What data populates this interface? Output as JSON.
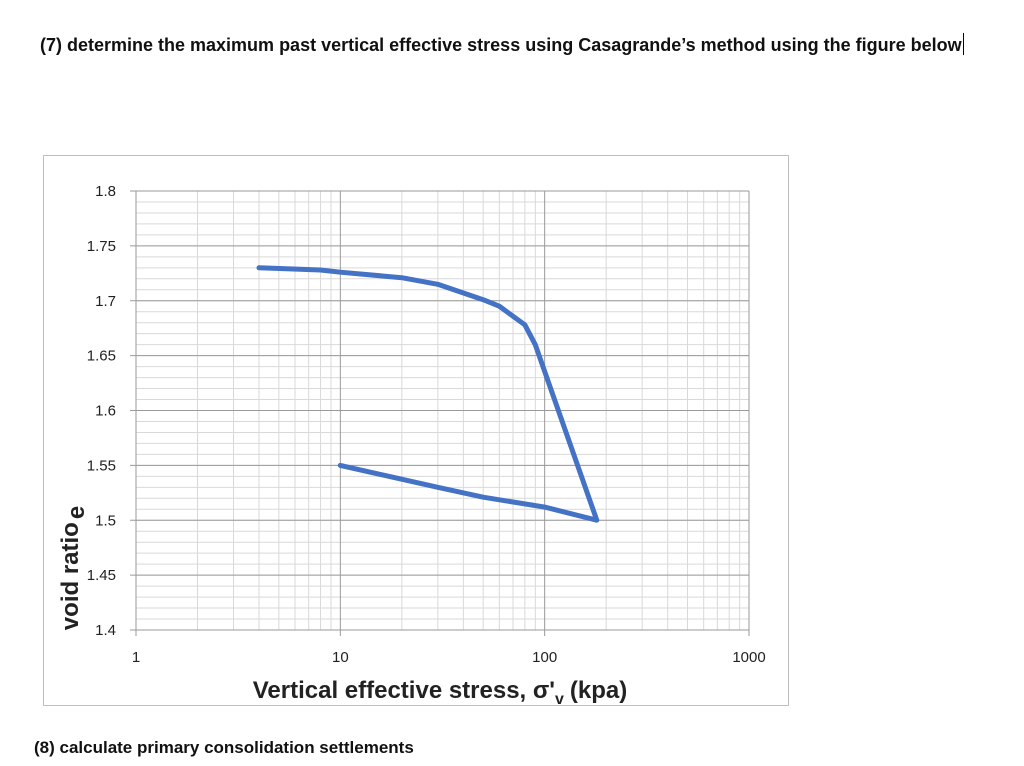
{
  "document": {
    "question_7": "(7) determine the maximum past vertical effective stress using Casagrande’s method using the figure below",
    "question_8": "(8) calculate primary consolidation settlements"
  },
  "chart_data": {
    "type": "line",
    "xlabel_main": "Vertical effective stress, σ'",
    "xlabel_sub": "v",
    "xlabel_unit": "(kpa)",
    "ylabel_main": "void ratio",
    "ylabel_sub": "e",
    "x_scale": "log",
    "xlim": [
      1,
      1000
    ],
    "ylim": [
      1.4,
      1.8
    ],
    "grid": true,
    "x_ticks": [
      1,
      10,
      100,
      1000
    ],
    "x_tick_labels": [
      "1",
      "10",
      "100",
      "1000"
    ],
    "y_ticks": [
      1.4,
      1.45,
      1.5,
      1.55,
      1.6,
      1.65,
      1.7,
      1.75,
      1.8
    ],
    "y_tick_labels": [
      "1.4",
      "1.45",
      "1.5",
      "1.55",
      "1.6",
      "1.65",
      "1.7",
      "1.75",
      "1.8"
    ],
    "series": [
      {
        "color": "#4472c4",
        "x": [
          4,
          8,
          10,
          20,
          30,
          50,
          60,
          80,
          90,
          180,
          100,
          50,
          30,
          10
        ],
        "y": [
          1.73,
          1.728,
          1.726,
          1.721,
          1.715,
          1.701,
          1.695,
          1.678,
          1.66,
          1.5,
          1.512,
          1.521,
          1.53,
          1.55
        ]
      }
    ]
  }
}
